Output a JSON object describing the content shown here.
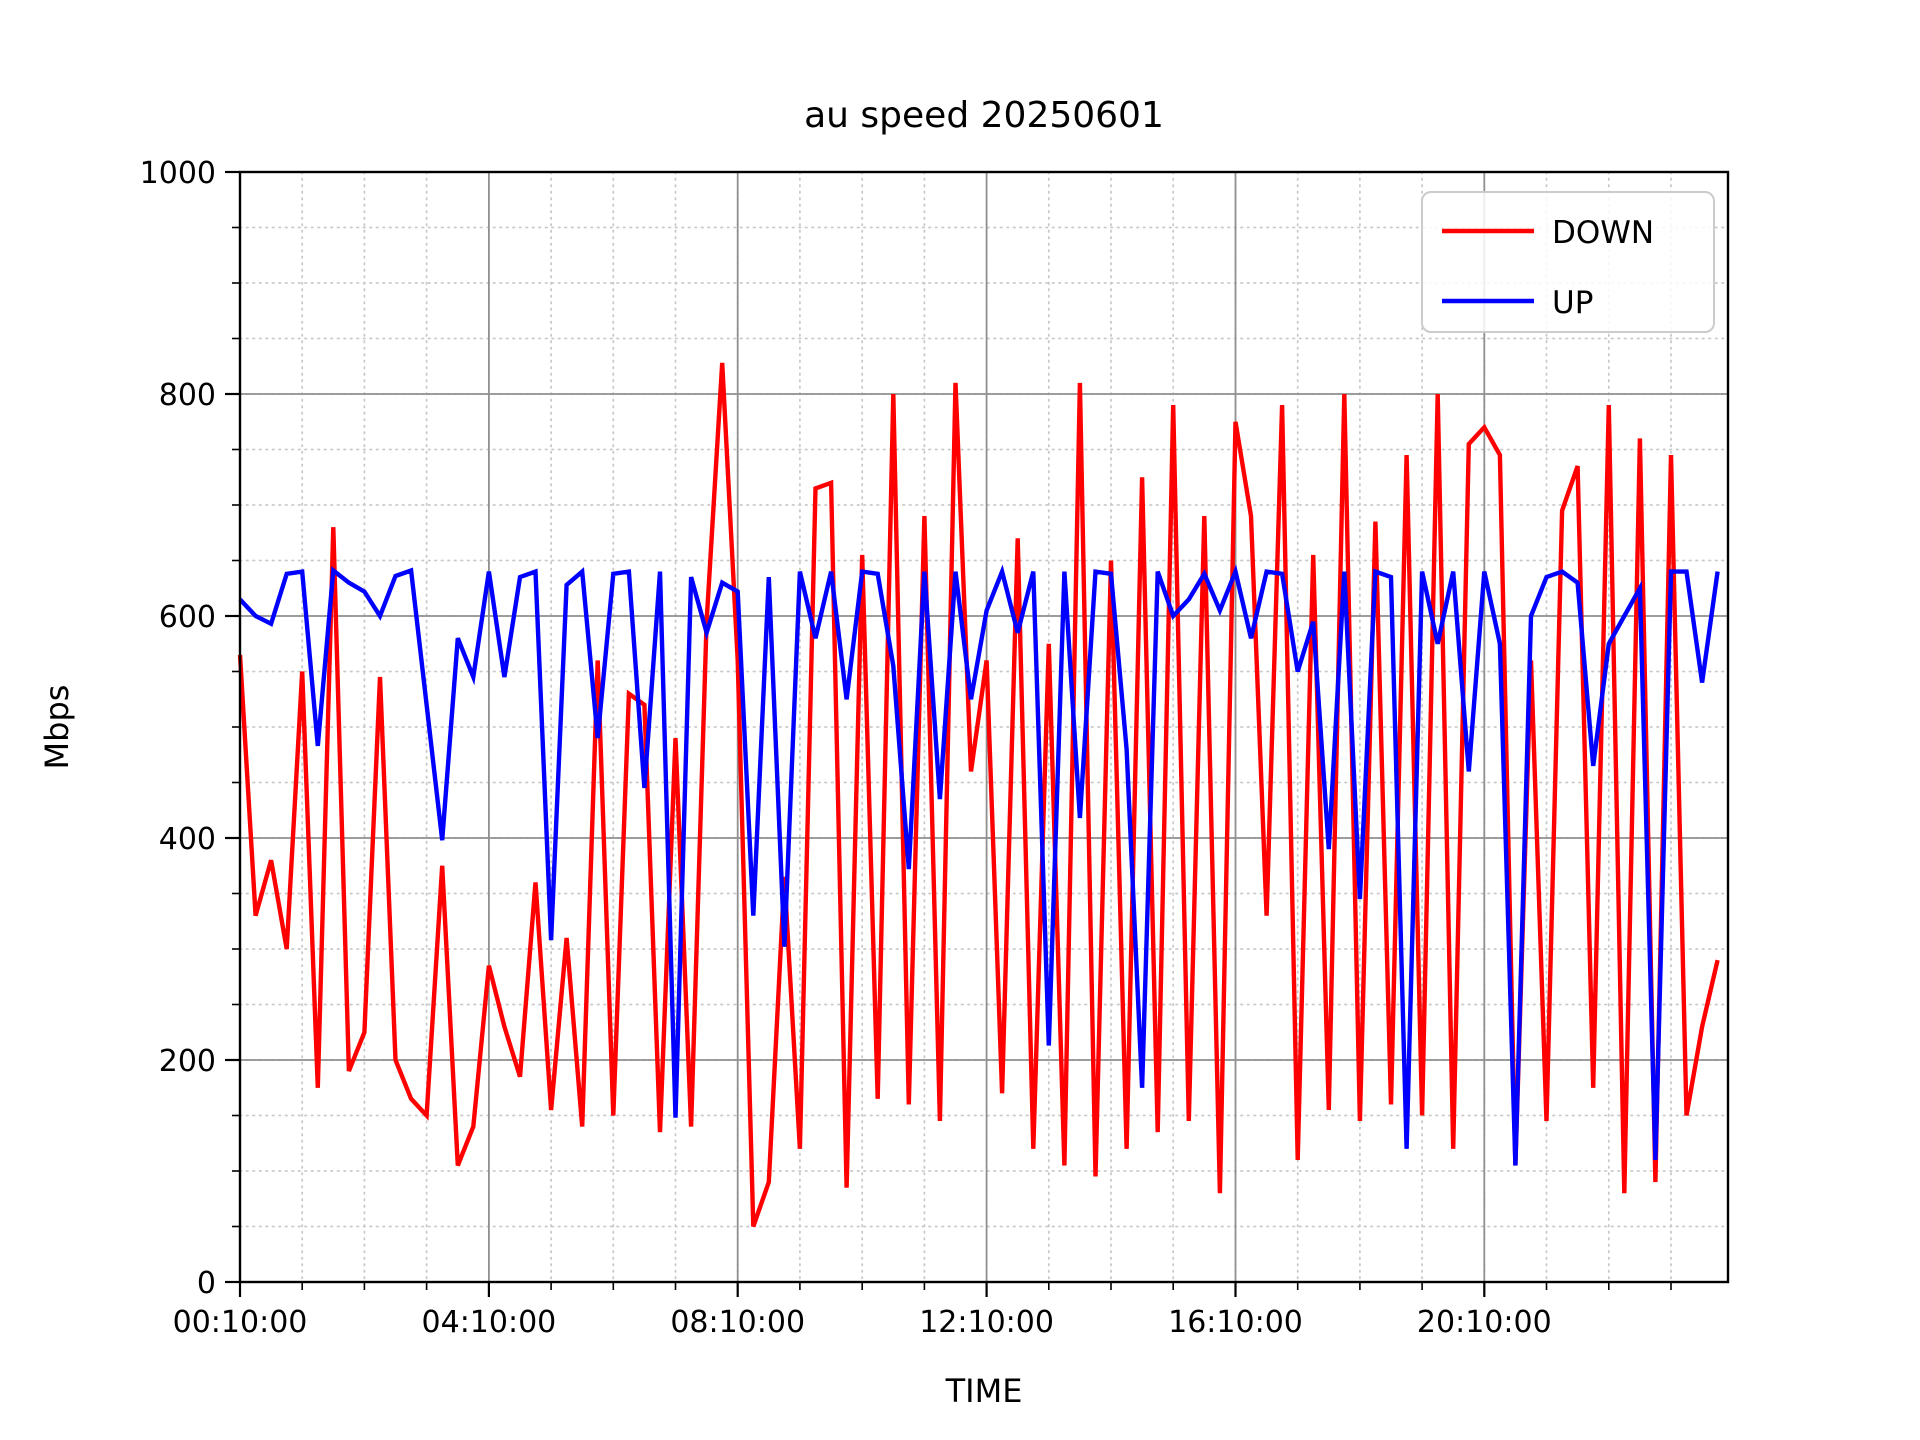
{
  "chart_data": {
    "type": "line",
    "title": "au speed 20250601",
    "xlabel": "TIME",
    "ylabel": "Mbps",
    "ylim": [
      0,
      1000
    ],
    "xlim_minutes": [
      10,
      1445
    ],
    "grid": "major-solid-minor-dotted",
    "legend_position": "upper right",
    "x_major_ticks": [
      {
        "minutes": 10,
        "label": "00:10:00"
      },
      {
        "minutes": 250,
        "label": "04:10:00"
      },
      {
        "minutes": 490,
        "label": "08:10:00"
      },
      {
        "minutes": 730,
        "label": "12:10:00"
      },
      {
        "minutes": 970,
        "label": "16:10:00"
      },
      {
        "minutes": 1210,
        "label": "20:10:00"
      }
    ],
    "x_minor_interval_minutes": 60,
    "y_major_ticks": [
      0,
      200,
      400,
      600,
      800,
      1000
    ],
    "y_minor_interval": 50,
    "sample_start_minutes": 10,
    "sample_interval_minutes": 15,
    "legend": [
      {
        "label": "DOWN",
        "color": "#ff0000"
      },
      {
        "label": "UP",
        "color": "#0000ff"
      }
    ],
    "series": [
      {
        "name": "DOWN",
        "color": "#ff0000",
        "values": [
          565,
          330,
          380,
          300,
          550,
          175,
          680,
          190,
          225,
          545,
          200,
          165,
          150,
          375,
          105,
          140,
          285,
          230,
          185,
          360,
          155,
          310,
          140,
          560,
          150,
          530,
          520,
          135,
          490,
          140,
          595,
          828,
          560,
          50,
          90,
          365,
          120,
          715,
          720,
          85,
          655,
          165,
          800,
          160,
          690,
          145,
          810,
          460,
          560,
          170,
          670,
          120,
          575,
          105,
          810,
          95,
          650,
          120,
          725,
          135,
          790,
          145,
          690,
          80,
          775,
          690,
          330,
          790,
          110,
          655,
          155,
          800,
          145,
          685,
          160,
          745,
          150,
          800,
          120,
          755,
          770,
          745,
          105,
          560,
          145,
          695,
          735,
          175,
          790,
          80,
          760,
          90,
          745,
          150,
          230,
          290
        ]
      },
      {
        "name": "UP",
        "color": "#0000ff",
        "values": [
          615,
          600,
          593,
          638,
          640,
          483,
          641,
          630,
          622,
          600,
          636,
          641,
          520,
          398,
          580,
          545,
          640,
          545,
          635,
          640,
          308,
          628,
          640,
          490,
          638,
          640,
          445,
          640,
          148,
          635,
          585,
          630,
          622,
          330,
          635,
          302,
          640,
          580,
          640,
          525,
          640,
          638,
          555,
          372,
          640,
          435,
          640,
          525,
          605,
          640,
          585,
          640,
          213,
          640,
          418,
          640,
          638,
          480,
          175,
          640,
          600,
          615,
          638,
          605,
          640,
          580,
          640,
          638,
          550,
          595,
          390,
          640,
          345,
          640,
          635,
          120,
          640,
          575,
          640,
          460,
          640,
          575,
          105,
          600,
          635,
          640,
          630,
          465,
          575,
          600,
          625,
          110,
          640,
          640,
          540,
          640
        ]
      }
    ]
  },
  "colors": {
    "background": "#ffffff",
    "spine": "#000000",
    "major_grid": "#909090",
    "minor_grid": "#c9c9c9",
    "down_line": "#ff0000",
    "up_line": "#0000ff",
    "legend_border": "#cccccc"
  }
}
